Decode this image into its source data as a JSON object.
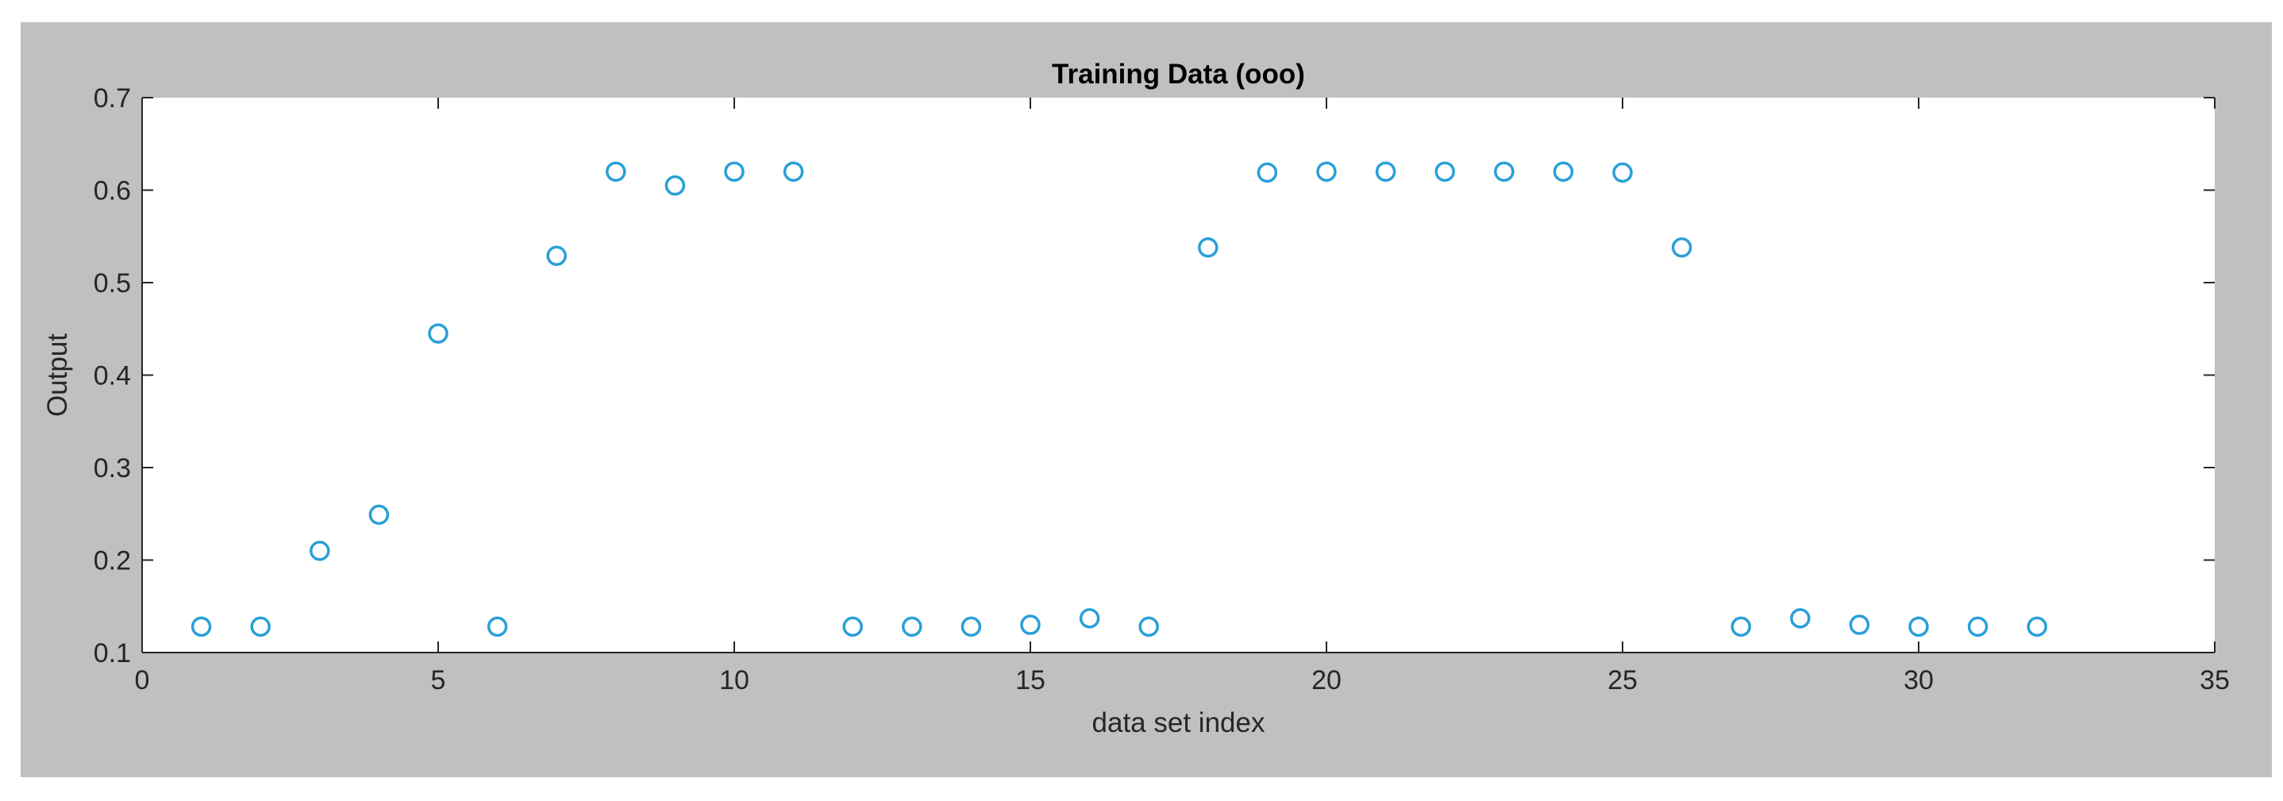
{
  "chart_data": {
    "type": "scatter",
    "title": "Training Data (ooo)",
    "xlabel": "data set index",
    "ylabel": "Output",
    "xlim": [
      0,
      35
    ],
    "ylim": [
      0.1,
      0.7
    ],
    "xticks": [
      "0",
      "5",
      "10",
      "15",
      "20",
      "25",
      "30",
      "35"
    ],
    "yticks": [
      "0.1",
      "0.2",
      "0.3",
      "0.4",
      "0.5",
      "0.6",
      "0.7"
    ],
    "grid": false,
    "marker": "circle-open",
    "colors": {
      "marker": "#2a9fd8",
      "axes_bg": "#ffffff",
      "figure_bg": "#c0c0c0",
      "axis": "#262626"
    },
    "series": [
      {
        "x": [
          1,
          2,
          3,
          4,
          5,
          6,
          7,
          8,
          9,
          10,
          11,
          12,
          13,
          14,
          15,
          16,
          17,
          18,
          19,
          20,
          21,
          22,
          23,
          24,
          25,
          26,
          27,
          28,
          29,
          30,
          31,
          32
        ],
        "values": [
          0.128,
          0.128,
          0.21,
          0.249,
          0.445,
          0.128,
          0.529,
          0.62,
          0.605,
          0.62,
          0.62,
          0.128,
          0.128,
          0.128,
          0.13,
          0.137,
          0.128,
          0.538,
          0.619,
          0.62,
          0.62,
          0.62,
          0.62,
          0.62,
          0.619,
          0.538,
          0.128,
          0.137,
          0.13,
          0.128,
          0.128,
          0.128
        ]
      }
    ]
  }
}
